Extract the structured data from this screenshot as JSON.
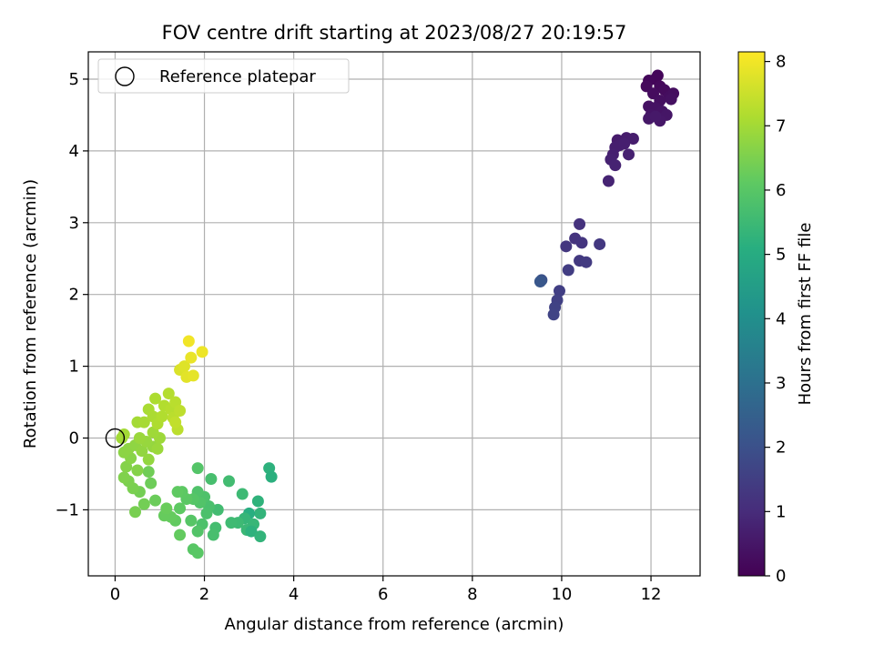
{
  "chart_data": {
    "type": "scatter",
    "title": "FOV centre drift starting at 2023/08/27 20:19:57",
    "xlabel": "Angular distance from reference (arcmin)",
    "ylabel": "Rotation from reference (arcmin)",
    "xlim": [
      -0.6,
      13.1
    ],
    "ylim": [
      -1.92,
      5.38
    ],
    "xticks": [
      "0",
      "2",
      "4",
      "6",
      "8",
      "10",
      "12"
    ],
    "xtick_values": [
      0,
      2,
      4,
      6,
      8,
      10,
      12
    ],
    "yticks": [
      "−1",
      "0",
      "1",
      "2",
      "3",
      "4",
      "5"
    ],
    "ytick_values": [
      -1,
      0,
      1,
      2,
      3,
      4,
      5
    ],
    "grid": true,
    "legend": {
      "position": "top-left",
      "label": "Reference platepar"
    },
    "reference_point": {
      "x": 0,
      "y": 0
    },
    "colorbar": {
      "label": "Hours from first FF file",
      "min": 0,
      "max": 8.15,
      "ticks": [
        "0",
        "1",
        "2",
        "3",
        "4",
        "5",
        "6",
        "7",
        "8"
      ],
      "tick_values": [
        0,
        1,
        2,
        3,
        4,
        5,
        6,
        7,
        8
      ],
      "colormap": "viridis"
    },
    "points": [
      {
        "x": 12.1,
        "y": 5.0,
        "t": 0.1
      },
      {
        "x": 12.15,
        "y": 5.05,
        "t": 0.12
      },
      {
        "x": 11.95,
        "y": 4.98,
        "t": 0.15
      },
      {
        "x": 12.2,
        "y": 4.9,
        "t": 0.18
      },
      {
        "x": 11.9,
        "y": 4.9,
        "t": 0.2
      },
      {
        "x": 12.3,
        "y": 4.85,
        "t": 0.22
      },
      {
        "x": 12.05,
        "y": 4.8,
        "t": 0.25
      },
      {
        "x": 12.4,
        "y": 4.75,
        "t": 0.28
      },
      {
        "x": 12.5,
        "y": 4.8,
        "t": 0.3
      },
      {
        "x": 12.2,
        "y": 4.7,
        "t": 0.32
      },
      {
        "x": 12.45,
        "y": 4.72,
        "t": 0.35
      },
      {
        "x": 11.95,
        "y": 4.62,
        "t": 0.38
      },
      {
        "x": 12.1,
        "y": 4.6,
        "t": 0.4
      },
      {
        "x": 12.25,
        "y": 4.55,
        "t": 0.42
      },
      {
        "x": 12.0,
        "y": 4.5,
        "t": 0.45
      },
      {
        "x": 12.35,
        "y": 4.5,
        "t": 0.48
      },
      {
        "x": 11.95,
        "y": 4.45,
        "t": 0.5
      },
      {
        "x": 12.2,
        "y": 4.42,
        "t": 0.52
      },
      {
        "x": 12.1,
        "y": 4.48,
        "t": 0.55
      },
      {
        "x": 11.25,
        "y": 4.15,
        "t": 0.6
      },
      {
        "x": 11.45,
        "y": 4.18,
        "t": 0.62
      },
      {
        "x": 11.6,
        "y": 4.17,
        "t": 0.64
      },
      {
        "x": 11.3,
        "y": 4.08,
        "t": 0.66
      },
      {
        "x": 11.2,
        "y": 4.05,
        "t": 0.68
      },
      {
        "x": 11.4,
        "y": 4.1,
        "t": 0.7
      },
      {
        "x": 11.15,
        "y": 3.95,
        "t": 0.72
      },
      {
        "x": 11.5,
        "y": 3.95,
        "t": 0.74
      },
      {
        "x": 11.1,
        "y": 3.88,
        "t": 0.76
      },
      {
        "x": 11.2,
        "y": 3.8,
        "t": 0.78
      },
      {
        "x": 11.05,
        "y": 3.58,
        "t": 0.8
      },
      {
        "x": 10.4,
        "y": 2.98,
        "t": 1.15
      },
      {
        "x": 10.3,
        "y": 2.78,
        "t": 1.2
      },
      {
        "x": 10.45,
        "y": 2.72,
        "t": 1.25
      },
      {
        "x": 10.1,
        "y": 2.67,
        "t": 1.3
      },
      {
        "x": 10.85,
        "y": 2.7,
        "t": 1.32
      },
      {
        "x": 10.4,
        "y": 2.47,
        "t": 1.35
      },
      {
        "x": 10.55,
        "y": 2.45,
        "t": 1.4
      },
      {
        "x": 10.15,
        "y": 2.34,
        "t": 1.45
      },
      {
        "x": 9.95,
        "y": 2.05,
        "t": 1.5
      },
      {
        "x": 9.9,
        "y": 1.92,
        "t": 1.55
      },
      {
        "x": 9.85,
        "y": 1.82,
        "t": 1.6
      },
      {
        "x": 9.82,
        "y": 1.72,
        "t": 1.65
      },
      {
        "x": 9.55,
        "y": 2.2,
        "t": 2.0
      },
      {
        "x": 9.52,
        "y": 2.18,
        "t": 2.2
      },
      {
        "x": 3.45,
        "y": -0.42,
        "t": 5.2
      },
      {
        "x": 3.5,
        "y": -0.54,
        "t": 5.15
      },
      {
        "x": 3.2,
        "y": -0.88,
        "t": 5.25
      },
      {
        "x": 3.25,
        "y": -1.05,
        "t": 5.3
      },
      {
        "x": 3.0,
        "y": -1.05,
        "t": 5.1
      },
      {
        "x": 2.9,
        "y": -1.12,
        "t": 5.35
      },
      {
        "x": 3.1,
        "y": -1.2,
        "t": 5.4
      },
      {
        "x": 2.95,
        "y": -1.28,
        "t": 5.45
      },
      {
        "x": 3.05,
        "y": -1.3,
        "t": 5.2
      },
      {
        "x": 3.25,
        "y": -1.37,
        "t": 5.3
      },
      {
        "x": 2.75,
        "y": -1.18,
        "t": 5.5
      },
      {
        "x": 2.85,
        "y": -0.78,
        "t": 5.5
      },
      {
        "x": 2.6,
        "y": -1.18,
        "t": 5.55
      },
      {
        "x": 2.55,
        "y": -0.6,
        "t": 5.6
      },
      {
        "x": 2.3,
        "y": -1.0,
        "t": 5.6
      },
      {
        "x": 2.25,
        "y": -1.25,
        "t": 5.65
      },
      {
        "x": 2.2,
        "y": -1.35,
        "t": 5.7
      },
      {
        "x": 2.15,
        "y": -0.57,
        "t": 5.7
      },
      {
        "x": 2.1,
        "y": -0.95,
        "t": 5.75
      },
      {
        "x": 2.05,
        "y": -1.05,
        "t": 5.78
      },
      {
        "x": 1.95,
        "y": -1.2,
        "t": 5.8
      },
      {
        "x": 2.0,
        "y": -0.82,
        "t": 5.82
      },
      {
        "x": 1.85,
        "y": -0.75,
        "t": 5.85
      },
      {
        "x": 1.9,
        "y": -0.9,
        "t": 5.88
      },
      {
        "x": 1.85,
        "y": -1.3,
        "t": 5.9
      },
      {
        "x": 1.85,
        "y": -0.42,
        "t": 5.92
      },
      {
        "x": 1.75,
        "y": -0.85,
        "t": 5.95
      },
      {
        "x": 1.7,
        "y": -1.15,
        "t": 5.97
      },
      {
        "x": 1.75,
        "y": -1.55,
        "t": 6.0
      },
      {
        "x": 1.85,
        "y": -1.6,
        "t": 6.02
      },
      {
        "x": 1.6,
        "y": -0.85,
        "t": 6.05
      },
      {
        "x": 1.5,
        "y": -0.75,
        "t": 6.08
      },
      {
        "x": 1.45,
        "y": -0.98,
        "t": 6.1
      },
      {
        "x": 1.4,
        "y": -0.75,
        "t": 6.12
      },
      {
        "x": 1.35,
        "y": -1.15,
        "t": 6.15
      },
      {
        "x": 1.45,
        "y": -1.35,
        "t": 6.18
      },
      {
        "x": 1.25,
        "y": -1.1,
        "t": 6.2
      },
      {
        "x": 1.1,
        "y": -1.08,
        "t": 6.22
      },
      {
        "x": 1.15,
        "y": -0.98,
        "t": 6.25
      },
      {
        "x": 0.9,
        "y": -0.87,
        "t": 6.28
      },
      {
        "x": 0.8,
        "y": -0.63,
        "t": 6.3
      },
      {
        "x": 0.75,
        "y": -0.47,
        "t": 6.35
      },
      {
        "x": 0.65,
        "y": -0.92,
        "t": 6.38
      },
      {
        "x": 0.55,
        "y": -0.75,
        "t": 6.4
      },
      {
        "x": 0.45,
        "y": -1.03,
        "t": 6.45
      },
      {
        "x": 0.4,
        "y": -0.7,
        "t": 6.48
      },
      {
        "x": 0.3,
        "y": -0.6,
        "t": 6.5
      },
      {
        "x": 0.2,
        "y": -0.55,
        "t": 6.55
      },
      {
        "x": 0.25,
        "y": -0.4,
        "t": 6.6
      },
      {
        "x": 0.5,
        "y": -0.45,
        "t": 6.62
      },
      {
        "x": 0.35,
        "y": -0.28,
        "t": 6.65
      },
      {
        "x": 0.2,
        "y": -0.2,
        "t": 6.7
      },
      {
        "x": 0.3,
        "y": -0.15,
        "t": 6.72
      },
      {
        "x": 0.45,
        "y": -0.1,
        "t": 6.75
      },
      {
        "x": 0.6,
        "y": -0.18,
        "t": 6.78
      },
      {
        "x": 0.75,
        "y": -0.3,
        "t": 6.8
      },
      {
        "x": 0.85,
        "y": -0.12,
        "t": 6.82
      },
      {
        "x": 0.7,
        "y": -0.05,
        "t": 6.85
      },
      {
        "x": 0.55,
        "y": 0.0,
        "t": 6.88
      },
      {
        "x": 0.95,
        "y": -0.15,
        "t": 6.9
      },
      {
        "x": 1.0,
        "y": 0.0,
        "t": 6.92
      },
      {
        "x": 0.85,
        "y": 0.08,
        "t": 6.95
      },
      {
        "x": 0.15,
        "y": 0.0,
        "t": 6.98
      },
      {
        "x": 0.2,
        "y": 0.05,
        "t": 7.0
      },
      {
        "x": 0.5,
        "y": 0.22,
        "t": 7.02
      },
      {
        "x": 0.65,
        "y": 0.22,
        "t": 7.05
      },
      {
        "x": 0.75,
        "y": 0.4,
        "t": 7.08
      },
      {
        "x": 0.85,
        "y": 0.3,
        "t": 7.1
      },
      {
        "x": 0.9,
        "y": 0.55,
        "t": 7.12
      },
      {
        "x": 0.95,
        "y": 0.2,
        "t": 7.15
      },
      {
        "x": 1.05,
        "y": 0.3,
        "t": 7.18
      },
      {
        "x": 1.1,
        "y": 0.45,
        "t": 7.2
      },
      {
        "x": 1.2,
        "y": 0.62,
        "t": 7.22
      },
      {
        "x": 1.25,
        "y": 0.4,
        "t": 7.25
      },
      {
        "x": 1.35,
        "y": 0.5,
        "t": 7.28
      },
      {
        "x": 1.3,
        "y": 0.28,
        "t": 7.3
      },
      {
        "x": 1.4,
        "y": 0.12,
        "t": 7.32
      },
      {
        "x": 1.45,
        "y": 0.38,
        "t": 7.35
      },
      {
        "x": 1.35,
        "y": 0.22,
        "t": 7.38
      },
      {
        "x": 1.45,
        "y": 0.95,
        "t": 7.7
      },
      {
        "x": 1.55,
        "y": 1.0,
        "t": 7.75
      },
      {
        "x": 1.6,
        "y": 0.85,
        "t": 7.8
      },
      {
        "x": 1.75,
        "y": 0.87,
        "t": 7.85
      },
      {
        "x": 1.7,
        "y": 1.12,
        "t": 7.9
      },
      {
        "x": 1.65,
        "y": 1.35,
        "t": 8.0
      },
      {
        "x": 1.95,
        "y": 1.2,
        "t": 7.95
      }
    ]
  }
}
